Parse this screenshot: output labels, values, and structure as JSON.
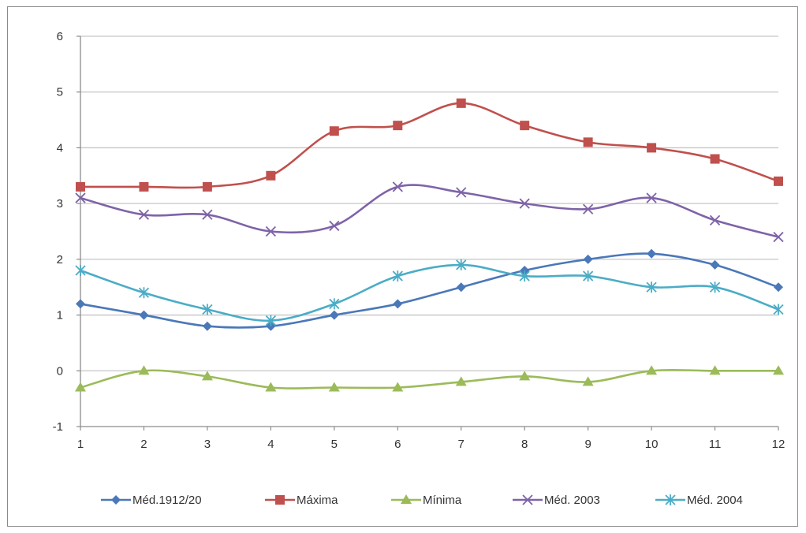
{
  "chart_data": {
    "type": "line",
    "title": "",
    "xlabel": "",
    "ylabel": "",
    "x": [
      1,
      2,
      3,
      4,
      5,
      6,
      7,
      8,
      9,
      10,
      11,
      12
    ],
    "x_tick_labels": [
      "1",
      "2",
      "3",
      "4",
      "5",
      "6",
      "7",
      "8",
      "9",
      "10",
      "11",
      "12"
    ],
    "ylim": [
      -1,
      6
    ],
    "y_ticks": [
      -1,
      0,
      1,
      2,
      3,
      4,
      5,
      6
    ],
    "y_tick_labels": [
      "-1",
      "0",
      "1",
      "2",
      "3",
      "4",
      "5",
      "6"
    ],
    "grid": "horizontal",
    "smooth": true,
    "legend_position": "bottom",
    "series": [
      {
        "name": "Méd.1912/20",
        "color": "#4a78b8",
        "marker": "diamond",
        "values": [
          1.2,
          1.0,
          0.8,
          0.8,
          1.0,
          1.2,
          1.5,
          1.8,
          2.0,
          2.1,
          1.9,
          1.5
        ]
      },
      {
        "name": "Máxima",
        "color": "#c0504d",
        "marker": "square",
        "values": [
          3.3,
          3.3,
          3.3,
          3.5,
          4.3,
          4.4,
          4.8,
          4.4,
          4.1,
          4.0,
          3.8,
          3.4
        ]
      },
      {
        "name": "Mínima",
        "color": "#9bbb59",
        "marker": "triangle",
        "values": [
          -0.3,
          0.0,
          -0.1,
          -0.3,
          -0.3,
          -0.3,
          -0.2,
          -0.1,
          -0.2,
          0.0,
          0.0,
          0.0
        ]
      },
      {
        "name": "Méd. 2003",
        "color": "#7e63a8",
        "marker": "x",
        "values": [
          3.1,
          2.8,
          2.8,
          2.5,
          2.6,
          3.3,
          3.2,
          3.0,
          2.9,
          3.1,
          2.7,
          2.4
        ]
      },
      {
        "name": "Méd. 2004",
        "color": "#4bacc6",
        "marker": "star",
        "values": [
          1.8,
          1.4,
          1.1,
          0.9,
          1.2,
          1.7,
          1.9,
          1.7,
          1.7,
          1.5,
          1.5,
          1.1
        ]
      }
    ]
  }
}
